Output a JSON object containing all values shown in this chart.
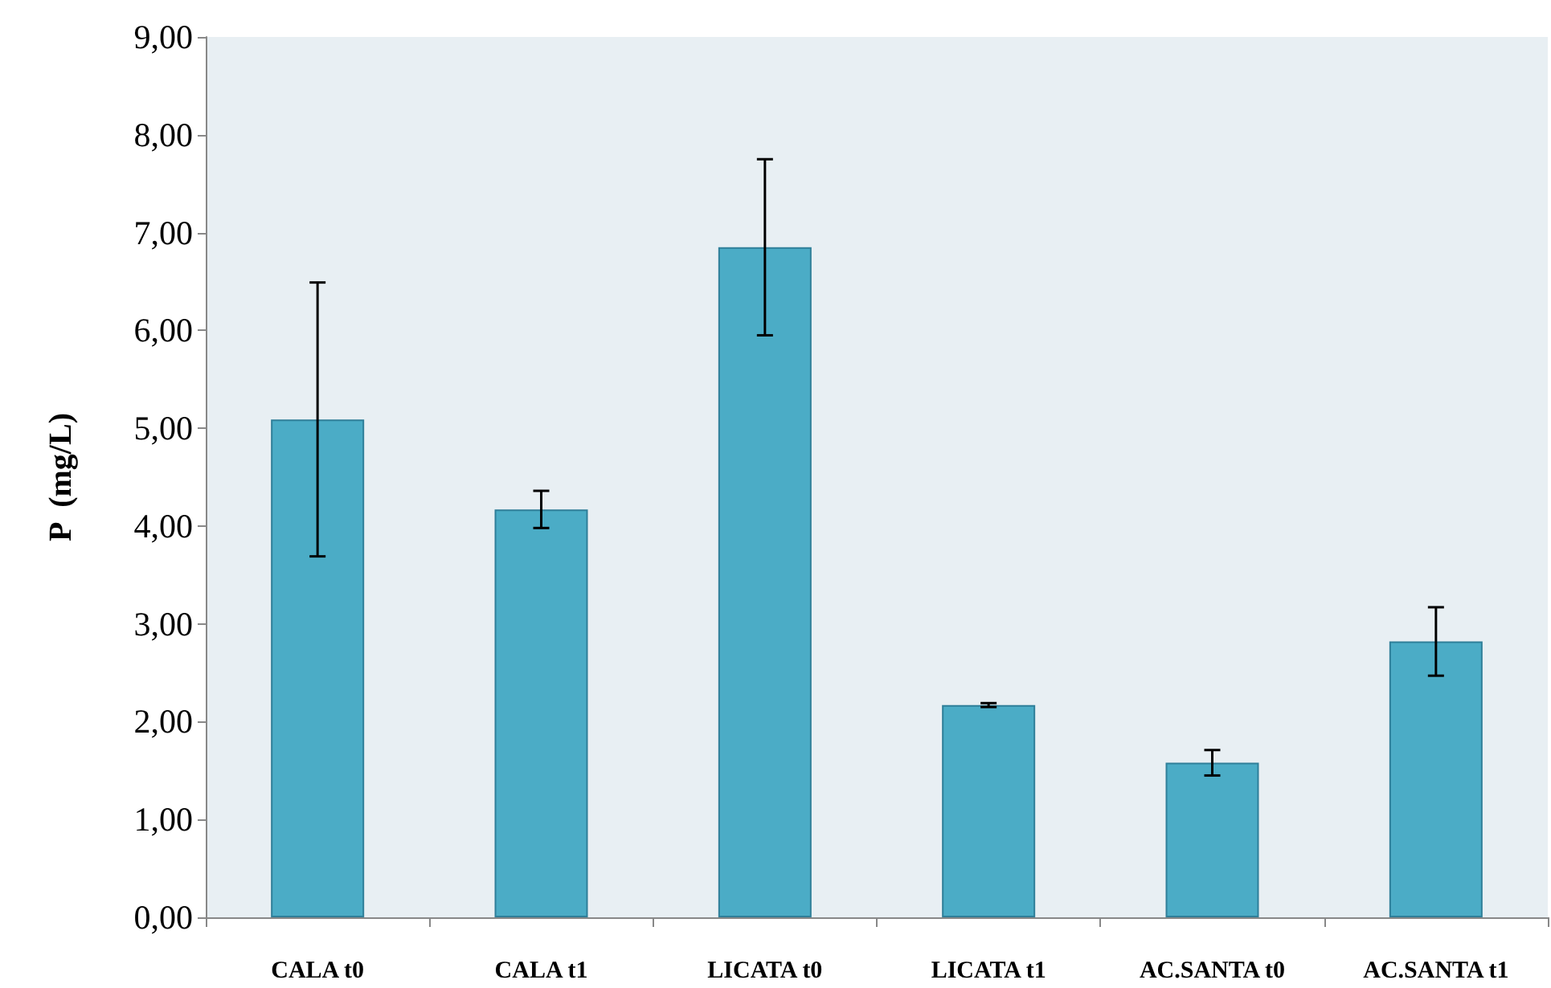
{
  "chart_data": {
    "type": "bar",
    "ylabel": "P  (mg/L)",
    "categories": [
      "CALA t0",
      "CALA t1",
      "LICATA t0",
      "LICATA t1",
      "AC.SANTA t0",
      "AC.SANTA t1"
    ],
    "values": [
      5.09,
      4.17,
      6.85,
      2.17,
      1.58,
      2.82
    ],
    "errors": [
      1.4,
      0.19,
      0.9,
      0.02,
      0.13,
      0.35
    ],
    "color": "#4bacc6",
    "ylim": [
      0,
      9
    ],
    "yticks": [
      {
        "value": 0,
        "label": "0,00"
      },
      {
        "value": 1,
        "label": "1,00"
      },
      {
        "value": 2,
        "label": "2,00"
      },
      {
        "value": 3,
        "label": "3,00"
      },
      {
        "value": 4,
        "label": "4,00"
      },
      {
        "value": 5,
        "label": "5,00"
      },
      {
        "value": 6,
        "label": "6,00"
      },
      {
        "value": 7,
        "label": "7,00"
      },
      {
        "value": 8,
        "label": "8,00"
      },
      {
        "value": 9,
        "label": "9,00"
      }
    ],
    "grid": false
  }
}
